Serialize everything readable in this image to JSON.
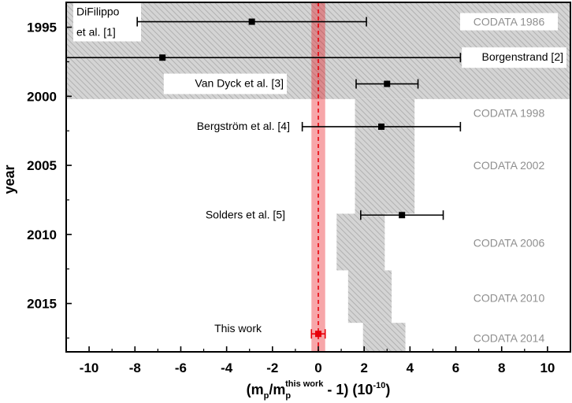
{
  "chart_data": {
    "type": "scatter",
    "xlabel_parts": [
      "(m",
      "p",
      "/m",
      "p",
      "this work",
      " - 1) (10",
      "-10",
      ")"
    ],
    "ylabel": "year",
    "xlim": [
      -11,
      11
    ],
    "ylim": [
      1993.2,
      2018.5
    ],
    "x_ticks": [
      -10,
      -8,
      -6,
      -4,
      -2,
      0,
      2,
      4,
      6,
      8,
      10
    ],
    "y_ticks": [
      1995,
      2000,
      2005,
      2010,
      2015
    ],
    "codata_bands": [
      {
        "label": "CODATA 1986",
        "year_start": 1993.2,
        "year_end": 2000.2,
        "x_low": -11,
        "x_high": 11
      },
      {
        "label": "CODATA 1998",
        "year_start": 2000.2,
        "year_end": 2008.5,
        "x_low": 1.6,
        "x_high": 4.2
      },
      {
        "label": "CODATA 2002",
        "year_start": 2000.2,
        "year_end": 2008.5,
        "x_low": 1.6,
        "x_high": 4.2
      },
      {
        "label": "CODATA 2006",
        "year_start": 2008.5,
        "year_end": 2012.6,
        "x_low": 0.8,
        "x_high": 2.9
      },
      {
        "label": "CODATA 2010",
        "year_start": 2012.6,
        "year_end": 2016.4,
        "x_low": 1.3,
        "x_high": 3.2
      },
      {
        "label": "CODATA 2014",
        "year_start": 2016.4,
        "year_end": 2018.5,
        "x_low": 1.95,
        "x_high": 3.8
      }
    ],
    "measurements": [
      {
        "label_lines": [
          "DiFilippo",
          "et al. [1]"
        ],
        "year": 1994.6,
        "value": -2.9,
        "err_low": -7.9,
        "err_high": 2.1
      },
      {
        "label_lines": [
          "Borgenstrand [2]"
        ],
        "year": 1997.2,
        "value": -6.8,
        "err_low": -11,
        "err_high": 6.2
      },
      {
        "label_lines": [
          "Van Dyck et al. [3]"
        ],
        "year": 1999.1,
        "value": 3.0,
        "err_low": 1.65,
        "err_high": 4.35
      },
      {
        "label_lines": [
          "Bergström et al. [4]"
        ],
        "year": 2002.2,
        "value": 2.75,
        "err_low": -0.7,
        "err_high": 6.2
      },
      {
        "label_lines": [
          "Solders et al. [5]"
        ],
        "year": 2008.6,
        "value": 3.65,
        "err_low": 1.85,
        "err_high": 5.45
      },
      {
        "label_lines": [
          "This work"
        ],
        "year": 2017.2,
        "value": 0.0,
        "err_low": -0.3,
        "err_high": 0.3,
        "highlight": true
      }
    ],
    "this_work_band": {
      "x_low": -0.3,
      "x_high": 0.3
    },
    "colors": {
      "highlight": "#e8000a",
      "band_fill": "#d4d4d4",
      "band_hatch": "#a8a8a8",
      "codata_text": "#8f8f8f"
    }
  }
}
